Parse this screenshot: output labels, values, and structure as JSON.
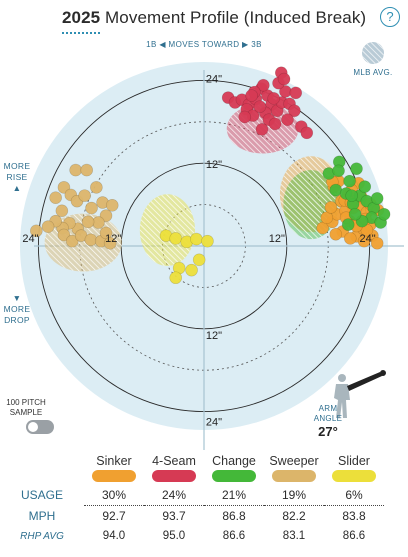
{
  "header": {
    "year": "2025",
    "title": "Movement Profile (Induced Break)",
    "help_label": "?"
  },
  "direction_label": "1B ◀ MOVES TOWARD ▶ 3B",
  "side_labels": {
    "rise": "MORE\nRISE\n▲",
    "drop": "▼\nMORE\nDROP"
  },
  "legend": {
    "mlb_avg": "MLB AVG."
  },
  "sample": {
    "label": "100 PITCH\nSAMPLE"
  },
  "arm_angle": {
    "label": "ARM\nANGLE",
    "value": "27°"
  },
  "colors": {
    "Sinker": "#f0a030",
    "4-Seam": "#d63a54",
    "Change": "#44b839",
    "Sweeper": "#dcb56a",
    "Slider": "#ecdf3a",
    "chart_bg": "#dcedf4"
  },
  "chart_data": {
    "type": "scatter",
    "xlabel": "",
    "ylabel": "",
    "xlim": [
      -28,
      28
    ],
    "ylim": [
      -28,
      28
    ],
    "ring_labels": [
      "12\"",
      "24\""
    ],
    "grid": true,
    "series": [
      {
        "name": "4-Seam",
        "points": [
          [
            3.5,
            21.5
          ],
          [
            4.5,
            20.8
          ],
          [
            5.5,
            21.2
          ],
          [
            6.5,
            20.5
          ],
          [
            7.5,
            21.3
          ],
          [
            8.3,
            22.8
          ],
          [
            9.2,
            21.8
          ],
          [
            9.8,
            20.5
          ],
          [
            10.6,
            19.6
          ],
          [
            11.3,
            20.8
          ],
          [
            11.8,
            22.4
          ],
          [
            8.6,
            23.3
          ],
          [
            7.3,
            22.3
          ],
          [
            6.2,
            19.8
          ],
          [
            7.1,
            18.9
          ],
          [
            8.9,
            19.3
          ],
          [
            9.4,
            18.3
          ],
          [
            10.3,
            17.7
          ],
          [
            12.4,
            20.6
          ],
          [
            13.1,
            19.6
          ],
          [
            14.1,
            17.3
          ],
          [
            14.9,
            16.4
          ],
          [
            10.8,
            23.6
          ],
          [
            11.2,
            25.1
          ],
          [
            11.6,
            24.2
          ],
          [
            8.1,
            20.2
          ],
          [
            5.9,
            18.7
          ],
          [
            6.9,
            21.8
          ],
          [
            10.1,
            21.4
          ],
          [
            12.1,
            18.3
          ],
          [
            8.4,
            16.9
          ],
          [
            13.3,
            22.2
          ]
        ]
      },
      {
        "name": "Sinker",
        "points": [
          [
            17.2,
            2.6
          ],
          [
            18.6,
            3.5
          ],
          [
            19.3,
            4.6
          ],
          [
            20.1,
            2.1
          ],
          [
            21.1,
            3.6
          ],
          [
            22.1,
            1.4
          ],
          [
            23.1,
            2.5
          ],
          [
            24.1,
            3.1
          ],
          [
            21.6,
            5.5
          ],
          [
            19.9,
            6.5
          ],
          [
            20.9,
            7.6
          ],
          [
            18.8,
            8.6
          ],
          [
            21.2,
            1.1
          ],
          [
            22.6,
            5.9
          ],
          [
            23.6,
            4.9
          ],
          [
            19.1,
            1.7
          ],
          [
            17.8,
            4.1
          ],
          [
            20.5,
            5.1
          ],
          [
            22.8,
            7.1
          ],
          [
            24.4,
            1.5
          ],
          [
            21.9,
            3.1
          ],
          [
            23.2,
            0.7
          ],
          [
            25.1,
            0.4
          ],
          [
            19.5,
            9.4
          ],
          [
            22.4,
            9.1
          ],
          [
            21.4,
            8.1
          ],
          [
            24.1,
            6.1
          ],
          [
            18.4,
            5.6
          ],
          [
            20.6,
            4.1
          ],
          [
            23.6,
            2.3
          ],
          [
            22.1,
            2.9
          ],
          [
            20.4,
            6.6
          ],
          [
            25.2,
            5.2
          ],
          [
            18.6,
            9.3
          ],
          [
            21.3,
            6.3
          ],
          [
            23.4,
            3.9
          ]
        ]
      },
      {
        "name": "Change",
        "points": [
          [
            18.1,
            10.5
          ],
          [
            19.6,
            12.2
          ],
          [
            21.1,
            9.4
          ],
          [
            22.1,
            11.2
          ],
          [
            19.1,
            8.1
          ],
          [
            20.6,
            7.6
          ],
          [
            21.6,
            6.1
          ],
          [
            22.6,
            7.3
          ],
          [
            23.6,
            6.5
          ],
          [
            24.6,
            5.5
          ],
          [
            25.1,
            6.9
          ],
          [
            24.3,
            4.1
          ],
          [
            22.9,
            3.6
          ],
          [
            21.9,
            4.6
          ],
          [
            20.9,
            3.1
          ],
          [
            25.6,
            3.4
          ],
          [
            26.1,
            4.6
          ],
          [
            19.5,
            10.9
          ],
          [
            23.3,
            8.6
          ],
          [
            21.4,
            7.3
          ]
        ]
      },
      {
        "name": "Sweeper",
        "points": [
          [
            -21.5,
            7.0
          ],
          [
            -20.3,
            8.5
          ],
          [
            -19.3,
            7.4
          ],
          [
            -18.4,
            6.5
          ],
          [
            -17.3,
            7.3
          ],
          [
            -16.3,
            5.5
          ],
          [
            -14.7,
            6.3
          ],
          [
            -13.3,
            5.9
          ],
          [
            -14.2,
            4.4
          ],
          [
            -15.3,
            3.4
          ],
          [
            -16.8,
            3.5
          ],
          [
            -18.3,
            2.5
          ],
          [
            -19.5,
            3.3
          ],
          [
            -20.5,
            2.6
          ],
          [
            -21.5,
            3.6
          ],
          [
            -22.6,
            2.8
          ],
          [
            -24.3,
            2.2
          ],
          [
            -20.3,
            1.6
          ],
          [
            -19.1,
            0.7
          ],
          [
            -17.8,
            1.5
          ],
          [
            -16.4,
            0.9
          ],
          [
            -14.9,
            0.7
          ],
          [
            -14.2,
            1.9
          ],
          [
            -13.6,
            0.4
          ],
          [
            -18.6,
            11.0
          ],
          [
            -17.0,
            11.0
          ],
          [
            -15.6,
            8.5
          ],
          [
            -20.6,
            5.1
          ]
        ]
      },
      {
        "name": "Slider",
        "points": [
          [
            -5.5,
            1.5
          ],
          [
            -4.1,
            1.1
          ],
          [
            -2.5,
            0.6
          ],
          [
            -1.1,
            1.0
          ],
          [
            0.5,
            0.7
          ],
          [
            -0.7,
            -2.0
          ],
          [
            -1.8,
            -3.5
          ],
          [
            -3.6,
            -3.2
          ],
          [
            -4.1,
            -4.6
          ]
        ]
      }
    ],
    "mlb_avg": [
      {
        "name": "4-Seam",
        "cx": 8.5,
        "cy": 17.0,
        "rx": 5.2,
        "ry": 3.6
      },
      {
        "name": "Sinker",
        "cx": 15.5,
        "cy": 7.5,
        "rx": 4.5,
        "ry": 5.5
      },
      {
        "name": "Change",
        "cx": 15.5,
        "cy": 6.0,
        "rx": 4.0,
        "ry": 5.0
      },
      {
        "name": "Sweeper",
        "cx": -17.5,
        "cy": 0.5,
        "rx": 5.6,
        "ry": 4.2
      },
      {
        "name": "Slider",
        "cx": -5.3,
        "cy": 2.3,
        "rx": 4.0,
        "ry": 5.2
      }
    ]
  },
  "stats": {
    "pitches": [
      "Sinker",
      "4-Seam",
      "Change",
      "Sweeper",
      "Slider"
    ],
    "usage_label": "USAGE",
    "mph_label": "MPH",
    "rhp_label": "RHP AVG",
    "usage": [
      "30%",
      "24%",
      "21%",
      "19%",
      "6%"
    ],
    "mph": [
      "92.7",
      "93.7",
      "86.8",
      "82.2",
      "83.8"
    ],
    "rhp_avg": [
      "94.0",
      "95.0",
      "86.6",
      "83.1",
      "86.6"
    ]
  }
}
